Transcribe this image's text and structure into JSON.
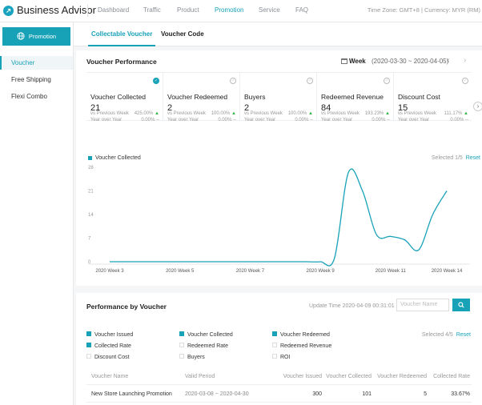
{
  "app": {
    "title": "Business Advisor",
    "accent_color": "#17a2b8",
    "nav": [
      "Dashboard",
      "Traffic",
      "Product",
      "Promotion",
      "Service",
      "FAQ"
    ],
    "active_nav": "Promotion",
    "timezone": "Time Zone: GMT+8 | Currency: MYR (RM)"
  },
  "sidebar": {
    "header_icon": "globe-icon",
    "header_label": "Promotion",
    "items": [
      "Voucher",
      "Free Shipping",
      "Flexi Combo"
    ],
    "active": "Voucher"
  },
  "tabs": {
    "items": [
      "Collectable Voucher",
      "Voucher Code"
    ],
    "active": "Collectable Voucher"
  },
  "performance": {
    "title": "Voucher Performance",
    "period_label": "Week",
    "period_range": "(2020-03-30 ~ 2020-04-05)",
    "prev_icon": "chevron-left-icon",
    "next_icon": "chevron-right-icon",
    "metrics": [
      {
        "name": "Voucher Collected",
        "value": "21",
        "selected": true,
        "wow_label": "vs Previous Week",
        "wow": "425.00%",
        "yoy_label": "Year over Year",
        "yoy": "0.00%"
      },
      {
        "name": "Voucher Redeemed",
        "value": "2",
        "selected": false,
        "wow_label": "vs Previous Week",
        "wow": "100.00%",
        "yoy_label": "Year over Year",
        "yoy": "0.00%"
      },
      {
        "name": "Buyers",
        "value": "2",
        "selected": false,
        "wow_label": "vs Previous Week",
        "wow": "100.00%",
        "yoy_label": "Year over Year",
        "yoy": "0.00%"
      },
      {
        "name": "Redeemed Revenue",
        "value": "84",
        "selected": false,
        "wow_label": "vs Previous Week",
        "wow": "193.23%",
        "yoy_label": "Year over Year",
        "yoy": "0.00%"
      },
      {
        "name": "Discount Cost",
        "value": "15",
        "selected": false,
        "wow_label": "vs Previous Week",
        "wow": "111.17%",
        "yoy_label": "Year over Year",
        "yoy": "0.00%"
      }
    ],
    "trend_up_icon": "triangle-up-icon",
    "yoy_suffix": "--",
    "legend": "Voucher Collected",
    "selected_text": "Selected 1/5",
    "reset": "Reset"
  },
  "chart_data": {
    "type": "line",
    "series": [
      {
        "name": "Voucher Collected",
        "values": [
          0,
          0,
          0,
          0,
          0,
          0,
          0,
          0,
          0,
          0,
          0,
          0,
          0,
          0,
          0,
          0,
          1,
          26.5,
          21,
          8,
          7.5,
          6.5,
          3.5,
          14,
          21
        ]
      }
    ],
    "x": [
      "2020 Week 3",
      "",
      "",
      "",
      "",
      "2020 Week 5",
      "",
      "",
      "",
      "",
      "2020 Week 7",
      "",
      "",
      "",
      "",
      "2020 Week 9",
      "",
      "",
      "",
      "",
      "2020 Week 11",
      "",
      "",
      "",
      "2020 Week 14"
    ],
    "x_tick_labels": [
      "2020 Week 3",
      "2020 Week 5",
      "2020 Week 7",
      "2020 Week 9",
      "2020 Week 11",
      "2020 Week 14"
    ],
    "y_ticks": [
      0,
      7,
      14,
      21,
      28
    ],
    "ylim": [
      0,
      28
    ],
    "line_color": "#17a2b8",
    "grid": false
  },
  "by_voucher": {
    "title": "Performance by Voucher",
    "update_time": "Update Time 2020-04-09 00:31:01",
    "search_placeholder": "Voucher Name",
    "search_icon": "search-icon",
    "options": [
      {
        "label": "Voucher Issued",
        "checked": true
      },
      {
        "label": "Voucher Collected",
        "checked": true
      },
      {
        "label": "Voucher Redeemed",
        "checked": true
      },
      {
        "label": "Collected Rate",
        "checked": true
      },
      {
        "label": "Redeemed Rate",
        "checked": false
      },
      {
        "label": "Redeemed Revenue",
        "checked": false
      },
      {
        "label": "Discount Cost",
        "checked": false
      },
      {
        "label": "Buyers",
        "checked": false
      },
      {
        "label": "ROI",
        "checked": false
      }
    ],
    "selected_text": "Selected 4/5",
    "reset": "Reset",
    "columns": [
      "Voucher Name",
      "Valid Period",
      "Voucher Issued",
      "Voucher Collected",
      "Voucher Redeemed",
      "Collected Rate"
    ],
    "rows": [
      [
        "New Store Launching Promotion",
        "2020-03-08 ~ 2020-04-30",
        "300",
        "101",
        "5",
        "33.67%"
      ]
    ]
  }
}
